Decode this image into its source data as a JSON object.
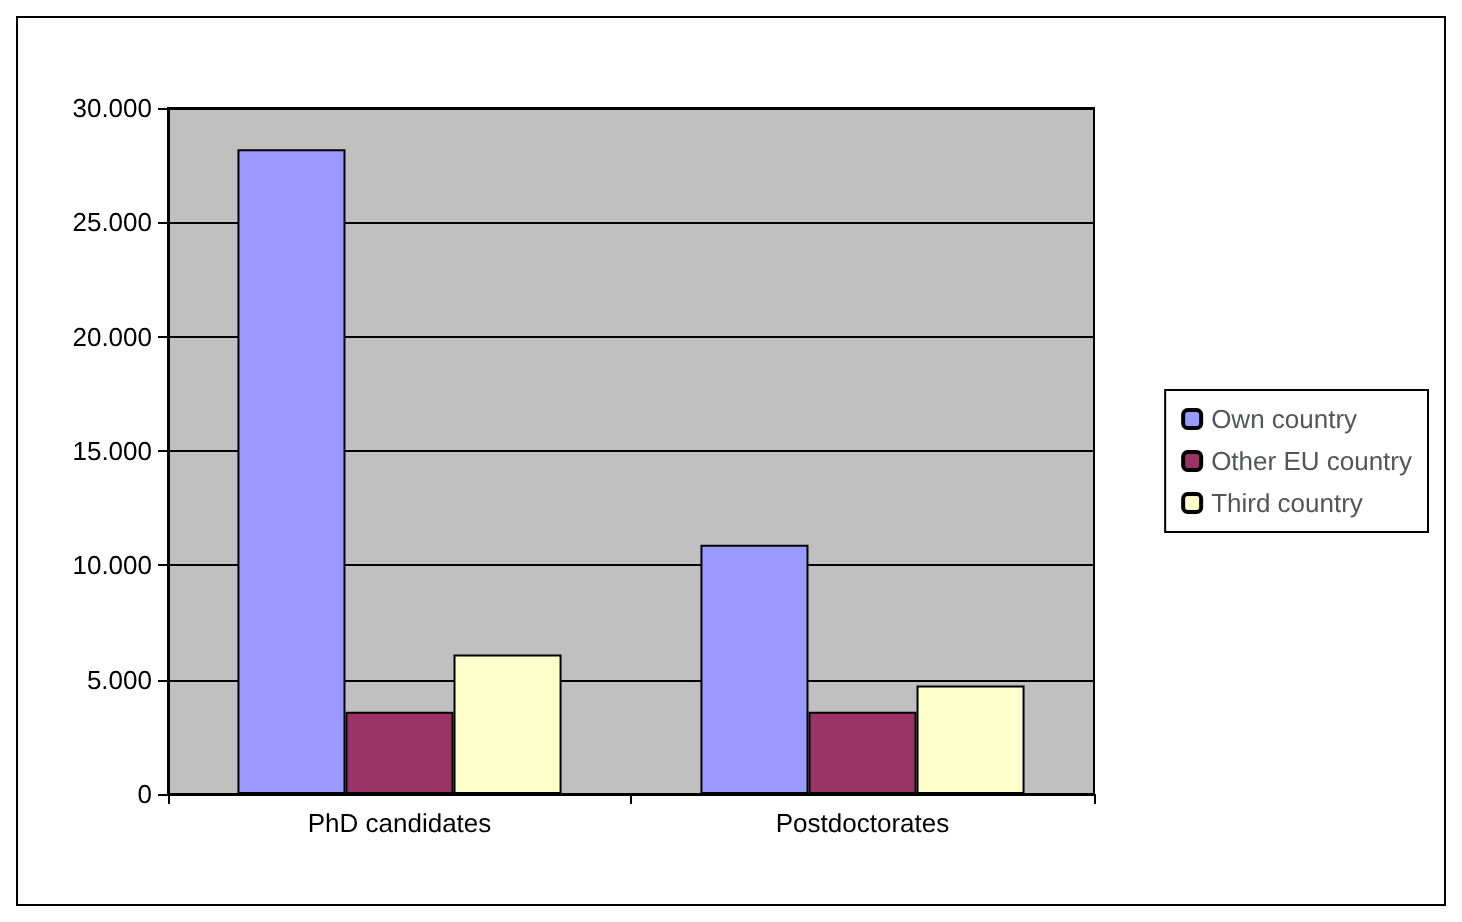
{
  "chart_data": {
    "type": "bar",
    "categories": [
      "PhD candidates",
      "Postdoctorates"
    ],
    "series": [
      {
        "name": "Own country",
        "color": "#9999ff",
        "values": [
          28200,
          10900
        ]
      },
      {
        "name": "Other EU country",
        "color": "#993366",
        "values": [
          3600,
          3600
        ]
      },
      {
        "name": "Third country",
        "color": "#ffffcc",
        "values": [
          6100,
          4750
        ]
      }
    ],
    "ylim": [
      0,
      30000
    ],
    "yticks": [
      0,
      {
        "value": 5000,
        "label": "5.000"
      },
      {
        "value": 10000,
        "label": "10.000"
      },
      {
        "value": 15000,
        "label": "15.000"
      },
      {
        "value": 20000,
        "label": "20.000"
      },
      {
        "value": 25000,
        "label": "25.000"
      },
      {
        "value": 30000,
        "label": "30.000"
      }
    ],
    "grid": "y",
    "legend": "right"
  }
}
